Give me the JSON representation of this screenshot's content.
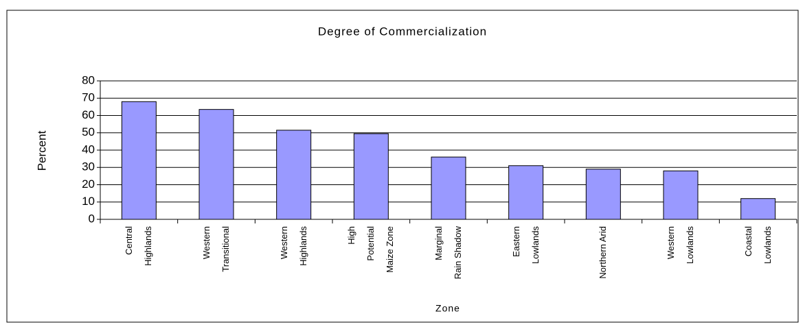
{
  "chart_data": {
    "type": "bar",
    "title": "Degree of Commercialization",
    "x_label": "Zone",
    "y_label": "Percent",
    "categories": [
      "Central Highlands",
      "Western Transitional",
      "Western Highlands",
      "High Potential Maize Zone",
      "Marginal Rain Shadow",
      "Eastern Lowlands",
      "Northern Arid",
      "Western Lowlands",
      "Coastal Lowlands"
    ],
    "values": [
      68,
      63.5,
      51.5,
      49.5,
      36,
      31,
      29,
      28,
      12
    ],
    "color": "#9999ff",
    "ylim": [
      0,
      80
    ],
    "yticks": [
      0,
      10,
      20,
      30,
      40,
      50,
      60,
      70,
      80
    ],
    "grid": true
  }
}
